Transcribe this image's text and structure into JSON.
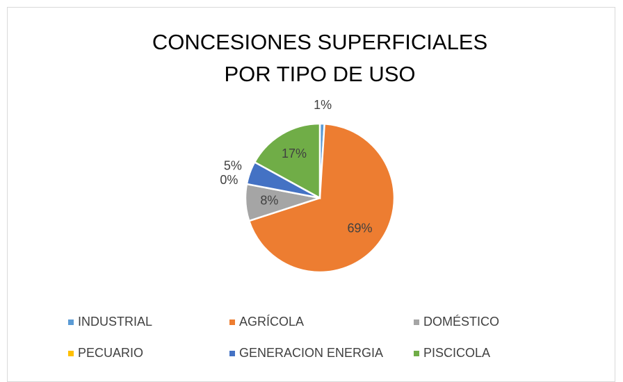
{
  "chart_data": {
    "type": "pie",
    "title": "CONCESIONES SUPERFICIALES  POR TIPO DE USO",
    "categories": [
      "INDUSTRIAL",
      "AGRÍCOLA",
      "DOMÉSTICO",
      "PECUARIO",
      "GENERACION ENERGIA",
      "PISCICOLA"
    ],
    "values": [
      1,
      69,
      8,
      0,
      5,
      17
    ],
    "value_labels": [
      "1%",
      "69%",
      "8%",
      "0%",
      "5%",
      "17%"
    ],
    "colors": [
      "#5b9bd5",
      "#ed7d31",
      "#a5a5a5",
      "#ffc000",
      "#4472c4",
      "#70ad47"
    ],
    "legend": "bottom"
  }
}
